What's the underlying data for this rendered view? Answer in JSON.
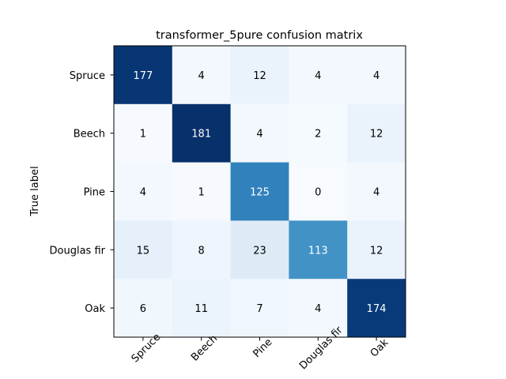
{
  "chart_data": {
    "type": "heatmap",
    "title": "transformer_5pure confusion matrix",
    "xlabel": "",
    "ylabel": "True label",
    "x_categories": [
      "Spruce",
      "Beech",
      "Pine",
      "Douglas fir",
      "Oak"
    ],
    "y_categories": [
      "Spruce",
      "Beech",
      "Pine",
      "Douglas fir",
      "Oak"
    ],
    "values": [
      [
        177,
        4,
        12,
        4,
        4
      ],
      [
        1,
        181,
        4,
        2,
        12
      ],
      [
        4,
        1,
        125,
        0,
        4
      ],
      [
        15,
        8,
        23,
        113,
        12
      ],
      [
        6,
        11,
        7,
        4,
        174
      ]
    ],
    "colormap": "Blues",
    "color_range": [
      0,
      181
    ],
    "x_tick_rotation": 45,
    "grid": false,
    "colorbar": false
  }
}
